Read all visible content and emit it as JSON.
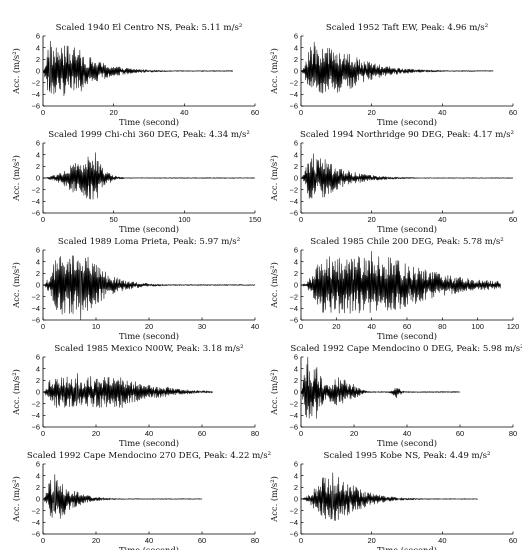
{
  "chart_data": [
    {
      "type": "line",
      "title": "Scaled 1940 El Centro NS, Peak: 5.11 m/s²",
      "xlabel": "Time (second)",
      "ylabel": "Acc. (m/s²)",
      "xlim": [
        0,
        60
      ],
      "ylim": [
        -6,
        6
      ],
      "xticks": [
        0,
        20,
        40,
        60
      ],
      "yticks": [
        6,
        4,
        2,
        0,
        -2,
        -4,
        -6
      ],
      "duration": 53.7,
      "peak": 5.11,
      "peak_time": 2.1
    },
    {
      "type": "line",
      "title": "Scaled 1952 Taft EW, Peak: 4.96 m/s²",
      "xlabel": "Time (second)",
      "ylabel": "Acc. (m/s²)",
      "xlim": [
        0,
        60
      ],
      "ylim": [
        -6,
        6
      ],
      "xticks": [
        0,
        20,
        40,
        60
      ],
      "yticks": [
        6,
        4,
        2,
        0,
        -2,
        -4,
        -6
      ],
      "duration": 54.4,
      "peak": 4.96,
      "peak_time": 3.7
    },
    {
      "type": "line",
      "title": "Scaled 1999 Chi-chi 360 DEG, Peak: 4.34 m/s²",
      "xlabel": "Time (second)",
      "ylabel": "Acc. (m/s²)",
      "xlim": [
        0,
        150
      ],
      "ylim": [
        -6,
        6
      ],
      "xticks": [
        0,
        50,
        100,
        150
      ],
      "yticks": [
        6,
        4,
        2,
        0,
        -2,
        -4,
        -6
      ],
      "duration": 150,
      "peak": 4.34,
      "peak_time": 37
    },
    {
      "type": "line",
      "title": "Scaled 1994 Northridge 90 DEG, Peak: 4.17 m/s²",
      "xlabel": "Time (second)",
      "ylabel": "Acc. (m/s²)",
      "xlim": [
        0,
        60
      ],
      "ylim": [
        -6,
        6
      ],
      "xticks": [
        0,
        20,
        40,
        60
      ],
      "yticks": [
        6,
        4,
        2,
        0,
        -2,
        -4,
        -6
      ],
      "duration": 60,
      "peak": 4.17,
      "peak_time": 3.5
    },
    {
      "type": "line",
      "title": "Scaled 1989 Loma Prieta, Peak: 5.97 m/s²",
      "xlabel": "Time (second)",
      "ylabel": "Acc. (m/s²)",
      "xlim": [
        0,
        40
      ],
      "ylim": [
        -6,
        6
      ],
      "xticks": [
        0,
        10,
        20,
        30,
        40
      ],
      "yticks": [
        6,
        4,
        2,
        0,
        -2,
        -4,
        -6
      ],
      "duration": 40,
      "peak": -5.97,
      "peak_time": 7.1
    },
    {
      "type": "line",
      "title": "Scaled 1985 Chile 200 DEG, Peak: 5.78 m/s²",
      "xlabel": "Time (second)",
      "ylabel": "Acc. (m/s²)",
      "xlim": [
        0,
        120
      ],
      "ylim": [
        -6,
        6
      ],
      "xticks": [
        0,
        20,
        40,
        60,
        80,
        100,
        120
      ],
      "yticks": [
        6,
        4,
        2,
        0,
        -2,
        -4,
        -6
      ],
      "duration": 113,
      "peak": 5.78,
      "peak_time": 40
    },
    {
      "type": "line",
      "title": "Scaled 1985 Mexico N00W, Peak: 3.18 m/s²",
      "xlabel": "Time (second)",
      "ylabel": "Acc. (m/s²)",
      "xlim": [
        0,
        80
      ],
      "ylim": [
        -6,
        6
      ],
      "xticks": [
        0,
        20,
        40,
        60,
        80
      ],
      "yticks": [
        6,
        4,
        2,
        0,
        -2,
        -4,
        -6
      ],
      "duration": 64,
      "peak": 3.18,
      "peak_time": 13
    },
    {
      "type": "line",
      "title": "Scaled 1992 Cape Mendocino 0 DEG, Peak: 5.98 m/s²",
      "xlabel": "Time (second)",
      "ylabel": "Acc. (m/s²)",
      "xlim": [
        0,
        80
      ],
      "ylim": [
        -6,
        6
      ],
      "xticks": [
        0,
        20,
        40,
        60,
        80
      ],
      "yticks": [
        6,
        4,
        2,
        0,
        -2,
        -4,
        -6
      ],
      "duration": 60,
      "peak": 5.98,
      "peak_time": 2.5
    },
    {
      "type": "line",
      "title": "Scaled 1992 Cape Mendocino 270 DEG, Peak: 4.22 m/s²",
      "xlabel": "Time (second)",
      "ylabel": "Acc. (m/s²)",
      "xlim": [
        0,
        80
      ],
      "ylim": [
        -6,
        6
      ],
      "xticks": [
        0,
        20,
        40,
        60,
        80
      ],
      "yticks": [
        6,
        4,
        2,
        0,
        -2,
        -4,
        -6
      ],
      "duration": 60,
      "peak": 4.22,
      "peak_time": 4.5
    },
    {
      "type": "line",
      "title": "Scaled 1995 Kobe NS, Peak: 4.49 m/s²",
      "xlabel": "Time (second)",
      "ylabel": "Acc. (m/s²)",
      "xlim": [
        0,
        60
      ],
      "ylim": [
        -6,
        6
      ],
      "xticks": [
        0,
        20,
        40,
        60
      ],
      "yticks": [
        6,
        4,
        2,
        0,
        -2,
        -4,
        -6
      ],
      "duration": 50,
      "peak": 4.49,
      "peak_time": 9
    }
  ]
}
